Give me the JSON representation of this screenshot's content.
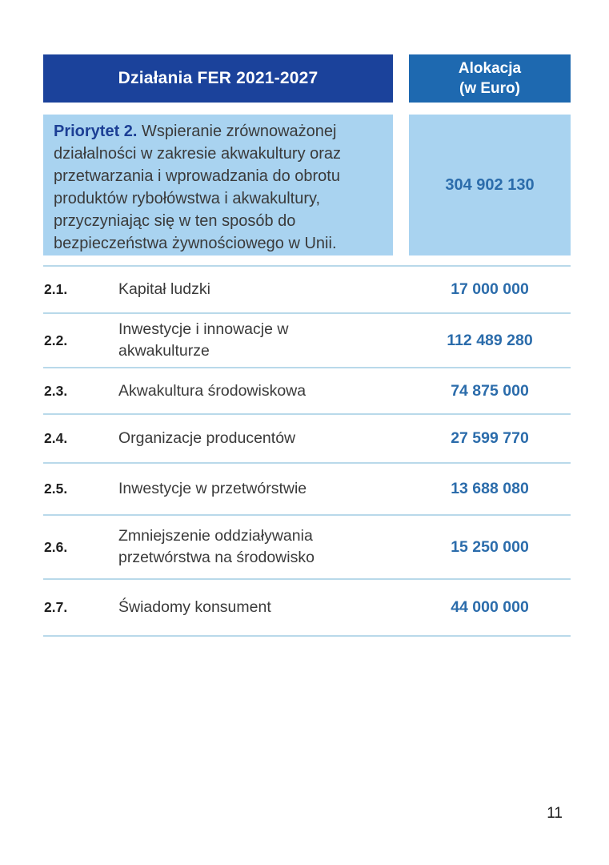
{
  "page": {
    "number": "11"
  },
  "colors": {
    "header_navy": "#1b429b",
    "header_blue": "#1e69b0",
    "cell_light_blue": "#a9d3f0",
    "divider_blue": "#b9d9ea",
    "value_blue": "#2b6cab",
    "priority_title_navy": "#1c3f95",
    "body_text": "#3a3a3a"
  },
  "table": {
    "header": {
      "actions": "Działania FER 2021-2027",
      "allocation_line1": "Alokacja",
      "allocation_line2": "(w Euro)"
    },
    "priority": {
      "title": "Priorytet 2.",
      "description": "Wspieranie zrównoważonej działalności w zakresie akwakultury oraz przetwarzania i wprowadzania do obrotu produktów rybołówstwa i akwakultury, przyczyniając się w ten sposób do bezpieczeństwa żywnościowego w Unii.",
      "allocation": "304 902 130"
    },
    "rows": [
      {
        "number": "2.1.",
        "label": "Kapitał ludzki",
        "allocation": "17 000 000"
      },
      {
        "number": "2.2.",
        "label": "Inwestycje i innowacje w akwakulturze",
        "allocation": "112 489 280"
      },
      {
        "number": "2.3.",
        "label": "Akwakultura środowiskowa",
        "allocation": "74 875 000"
      },
      {
        "number": "2.4.",
        "label": "Organizacje producentów",
        "allocation": "27 599 770"
      },
      {
        "number": "2.5.",
        "label": "Inwestycje w przetwórstwie",
        "allocation": "13 688 080"
      },
      {
        "number": "2.6.",
        "label": "Zmniejszenie oddziaływania przetwórstwa na środowisko",
        "allocation": "15 250 000"
      },
      {
        "number": "2.7.",
        "label": "Świadomy konsument",
        "allocation": "44 000 000"
      }
    ]
  }
}
